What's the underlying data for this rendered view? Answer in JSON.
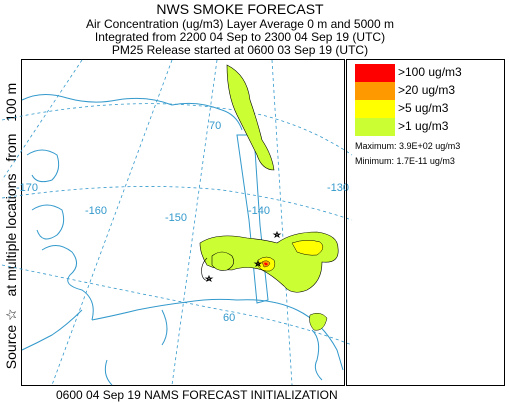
{
  "header": {
    "title": "NWS SMOKE FORECAST",
    "line2": "Air Concentration (ug/m3) Layer Average    0 m and  5000 m",
    "line3": "Integrated from 2200 04 Sep to 2300 04 Sep 19 (UTC)",
    "line4": "PM25 Release started at 0600 03 Sep 19 (UTC)"
  },
  "side_label": {
    "part1": "Source ☆",
    "part2": "at multiple locations",
    "part3": "from",
    "part4": "100 m"
  },
  "map": {
    "grid_color": "#3399cc",
    "lon_labels": [
      "-170",
      "-160",
      "-150",
      "-140",
      "-130"
    ],
    "lat_labels": [
      "70",
      "60"
    ],
    "levels": [
      {
        "label": ">100 ug/m3",
        "color": "#ff0000"
      },
      {
        "label": ">20 ug/m3",
        "color": "#ff9900"
      },
      {
        "label": ">5 ug/m3",
        "color": "#ffff00"
      },
      {
        "label": ">1 ug/m3",
        "color": "#ccff33"
      }
    ]
  },
  "stats": {
    "maximum": "Maximum: 3.9E+02 ug/m3",
    "minimum": "Minimum: 1.7E-11 ug/m3"
  },
  "footer": "0600 04 Sep 19 NAMS FORECAST INITIALIZATION"
}
